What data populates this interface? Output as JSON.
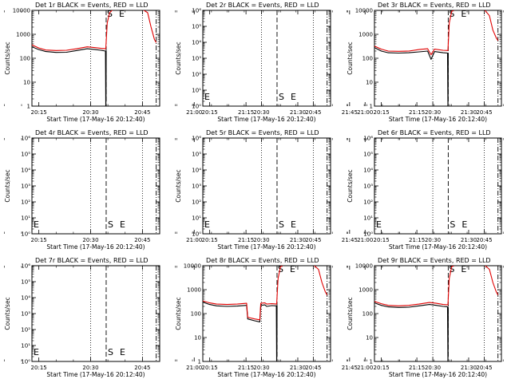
{
  "figure": {
    "x_tick_labels": [
      "20:15",
      "20:30",
      "20:45",
      "21:00",
      "21:15",
      "21:30",
      "21:45"
    ]
  },
  "chart_data": [
    {
      "type": "line",
      "detector": "1r",
      "title": "Det 1r BLACK = Events, RED = LLD",
      "xlabel": "Start Time (17-May-16 20:12:40)",
      "ylabel": "Counts/sec",
      "x_unit": "minutes after 20:00",
      "xlim": [
        13,
        50
      ],
      "y_scale": "log",
      "ylim": [
        1,
        10000
      ],
      "y_tick_labels": [
        "1",
        "10",
        "100",
        "1000",
        "10000"
      ],
      "empty": false,
      "start_time": 34.5,
      "end_time": 49,
      "markers": {
        "S": "S",
        "E": "E"
      },
      "series": [
        {
          "label": "Events",
          "color": "#000000",
          "points": [
            [
              13,
              300
            ],
            [
              15,
              230
            ],
            [
              17,
              190
            ],
            [
              20,
              175
            ],
            [
              23,
              178
            ],
            [
              26,
              210
            ],
            [
              29,
              250
            ],
            [
              31,
              235
            ],
            [
              33,
              215
            ],
            [
              34.3,
              200
            ],
            [
              34.4,
              1
            ],
            [
              34.45,
              2
            ],
            [
              34.5,
              200
            ]
          ]
        },
        {
          "label": "LLD",
          "color": "#e00000",
          "points": [
            [
              13,
              360
            ],
            [
              15,
              270
            ],
            [
              17,
              220
            ],
            [
              20,
              210
            ],
            [
              23,
              215
            ],
            [
              26,
              250
            ],
            [
              29,
              300
            ],
            [
              31,
              280
            ],
            [
              33,
              260
            ],
            [
              34.4,
              250
            ],
            [
              34.8,
              3000
            ],
            [
              35.5,
              8000
            ],
            [
              36.5,
              11000
            ],
            [
              45,
              11000
            ],
            [
              46.5,
              8000
            ],
            [
              47.5,
              2000
            ],
            [
              48.5,
              600
            ],
            [
              49,
              450
            ]
          ]
        }
      ]
    },
    {
      "type": "line",
      "detector": "2r",
      "title": "Det 2r BLACK = Events, RED = LLD",
      "xlabel": "Start Time (17-May-16 20:12:40)",
      "ylabel": "Counts/sec",
      "x_unit": "minutes after 20:00",
      "xlim": [
        13,
        50
      ],
      "y_scale": "log",
      "ylim": [
        1,
        1000000
      ],
      "y_tick_labels": [
        "10⁰",
        "10¹",
        "10²",
        "10³",
        "10⁴",
        "10⁵",
        "10⁶"
      ],
      "empty": true,
      "start_time": 34.5,
      "end_time": 49,
      "markers": {
        "S": "S",
        "E": "E"
      },
      "series": []
    },
    {
      "type": "line",
      "detector": "3r",
      "title": "Det 3r BLACK = Events, RED = LLD",
      "xlabel": "Start Time (17-May-16 20:12:40)",
      "ylabel": "Counts/sec",
      "x_unit": "minutes after 20:00",
      "xlim": [
        13,
        50
      ],
      "y_scale": "log",
      "ylim": [
        1,
        10000
      ],
      "y_tick_labels": [
        "1",
        "10",
        "100",
        "1000",
        "10000"
      ],
      "empty": false,
      "start_time": 34.5,
      "end_time": 49,
      "markers": {
        "S": "S",
        "E": "E"
      },
      "series": [
        {
          "label": "Events",
          "color": "#000000",
          "points": [
            [
              13,
              280
            ],
            [
              15,
              200
            ],
            [
              17,
              170
            ],
            [
              20,
              165
            ],
            [
              23,
              170
            ],
            [
              26,
              185
            ],
            [
              28.5,
              200
            ],
            [
              29.5,
              90
            ],
            [
              30.5,
              190
            ],
            [
              33,
              170
            ],
            [
              34.3,
              165
            ],
            [
              34.4,
              1
            ],
            [
              34.45,
              2
            ],
            [
              34.5,
              170
            ]
          ]
        },
        {
          "label": "LLD",
          "color": "#e00000",
          "points": [
            [
              13,
              320
            ],
            [
              15,
              240
            ],
            [
              17,
              200
            ],
            [
              20,
              195
            ],
            [
              23,
              200
            ],
            [
              26,
              230
            ],
            [
              28.5,
              250
            ],
            [
              29.5,
              140
            ],
            [
              30.5,
              240
            ],
            [
              33,
              215
            ],
            [
              34.4,
              210
            ],
            [
              34.8,
              3000
            ],
            [
              35.5,
              9000
            ],
            [
              36.5,
              11000
            ],
            [
              45,
              11000
            ],
            [
              46.5,
              6000
            ],
            [
              47.5,
              1500
            ],
            [
              48.5,
              700
            ],
            [
              49,
              550
            ]
          ]
        }
      ]
    },
    {
      "type": "line",
      "detector": "4r",
      "title": "Det 4r BLACK = Events, RED = LLD",
      "xlabel": "Start Time (17-May-16 20:12:40)",
      "ylabel": "Counts/sec",
      "x_unit": "minutes after 20:00",
      "xlim": [
        13,
        50
      ],
      "y_scale": "log",
      "ylim": [
        1,
        1000000
      ],
      "y_tick_labels": [
        "10⁰",
        "10¹",
        "10²",
        "10³",
        "10⁴",
        "10⁵",
        "10⁶"
      ],
      "empty": true,
      "start_time": 34.5,
      "end_time": 49,
      "markers": {
        "S": "S",
        "E": "E"
      },
      "series": []
    },
    {
      "type": "line",
      "detector": "5r",
      "title": "Det 5r BLACK = Events, RED = LLD",
      "xlabel": "Start Time (17-May-16 20:12:40)",
      "ylabel": "Counts/sec",
      "x_unit": "minutes after 20:00",
      "xlim": [
        13,
        50
      ],
      "y_scale": "log",
      "ylim": [
        1,
        1000000
      ],
      "y_tick_labels": [
        "10⁰",
        "10¹",
        "10²",
        "10³",
        "10⁴",
        "10⁵",
        "10⁶"
      ],
      "empty": true,
      "start_time": 34.5,
      "end_time": 49,
      "markers": {
        "S": "S",
        "E": "E"
      },
      "series": []
    },
    {
      "type": "line",
      "detector": "6r",
      "title": "Det 6r BLACK = Events, RED = LLD",
      "xlabel": "Start Time (17-May-16 20:12:40)",
      "ylabel": "Counts/sec",
      "x_unit": "minutes after 20:00",
      "xlim": [
        13,
        50
      ],
      "y_scale": "log",
      "ylim": [
        1,
        1000000
      ],
      "y_tick_labels": [
        "10⁰",
        "10¹",
        "10²",
        "10³",
        "10⁴",
        "10⁵",
        "10⁶"
      ],
      "empty": true,
      "start_time": 34.5,
      "end_time": 49,
      "markers": {
        "S": "S",
        "E": "E"
      },
      "series": []
    },
    {
      "type": "line",
      "detector": "7r",
      "title": "Det 7r BLACK = Events, RED = LLD",
      "xlabel": "Start Time (17-May-16 20:12:40)",
      "ylabel": "Counts/sec",
      "x_unit": "minutes after 20:00",
      "xlim": [
        13,
        50
      ],
      "y_scale": "log",
      "ylim": [
        1,
        1000000
      ],
      "y_tick_labels": [
        "10⁰",
        "10¹",
        "10²",
        "10³",
        "10⁴",
        "10⁵",
        "10⁶"
      ],
      "empty": true,
      "start_time": 34.5,
      "end_time": 49,
      "markers": {
        "S": "S",
        "E": "E"
      },
      "series": []
    },
    {
      "type": "line",
      "detector": "8r",
      "title": "Det 8r BLACK = Events, RED = LLD",
      "xlabel": "Start Time (17-May-16 20:12:40)",
      "ylabel": "Counts/sec",
      "x_unit": "minutes after 20:00",
      "xlim": [
        13,
        50
      ],
      "y_scale": "log",
      "ylim": [
        1,
        10000
      ],
      "y_tick_labels": [
        "1",
        "10",
        "100",
        "1000",
        "10000"
      ],
      "empty": false,
      "start_time": 34.5,
      "end_time": 49,
      "markers": {
        "S": "S",
        "E": "E"
      },
      "series": [
        {
          "label": "Events",
          "color": "#000000",
          "points": [
            [
              13,
              300
            ],
            [
              15,
              240
            ],
            [
              17,
              210
            ],
            [
              20,
              200
            ],
            [
              23,
              205
            ],
            [
              25.7,
              220
            ],
            [
              26,
              60
            ],
            [
              28,
              50
            ],
            [
              29.5,
              45
            ],
            [
              29.8,
              220
            ],
            [
              31,
              230
            ],
            [
              31.5,
              200
            ],
            [
              33,
              215
            ],
            [
              34.3,
              210
            ],
            [
              34.4,
              1
            ],
            [
              34.45,
              2
            ],
            [
              34.5,
              210
            ]
          ]
        },
        {
          "label": "LLD",
          "color": "#e00000",
          "points": [
            [
              13,
              340
            ],
            [
              15,
              280
            ],
            [
              17,
              250
            ],
            [
              20,
              240
            ],
            [
              23,
              250
            ],
            [
              25.7,
              270
            ],
            [
              26,
              70
            ],
            [
              28,
              60
            ],
            [
              29.5,
              55
            ],
            [
              29.8,
              270
            ],
            [
              31,
              280
            ],
            [
              31.5,
              250
            ],
            [
              33,
              260
            ],
            [
              34.4,
              250
            ],
            [
              34.8,
              3000
            ],
            [
              35.5,
              9000
            ],
            [
              36.5,
              11000
            ],
            [
              45,
              11000
            ],
            [
              46.5,
              7000
            ],
            [
              47.5,
              2000
            ],
            [
              48.5,
              800
            ],
            [
              49,
              600
            ]
          ]
        }
      ]
    },
    {
      "type": "line",
      "detector": "9r",
      "title": "Det 9r BLACK = Events, RED = LLD",
      "xlabel": "Start Time (17-May-16 20:12:40)",
      "ylabel": "Counts/sec",
      "x_unit": "minutes after 20:00",
      "xlim": [
        13,
        50
      ],
      "y_scale": "log",
      "ylim": [
        1,
        10000
      ],
      "y_tick_labels": [
        "1",
        "10",
        "100",
        "1000",
        "10000"
      ],
      "empty": false,
      "start_time": 34.5,
      "end_time": 49,
      "markers": {
        "S": "S",
        "E": "E"
      },
      "series": [
        {
          "label": "Events",
          "color": "#000000",
          "points": [
            [
              13,
              280
            ],
            [
              15,
              220
            ],
            [
              17,
              190
            ],
            [
              20,
              180
            ],
            [
              23,
              185
            ],
            [
              26,
              210
            ],
            [
              29,
              240
            ],
            [
              31,
              220
            ],
            [
              33,
              200
            ],
            [
              34.3,
              190
            ],
            [
              34.4,
              1
            ],
            [
              34.45,
              2
            ],
            [
              34.5,
              190
            ]
          ]
        },
        {
          "label": "LLD",
          "color": "#e00000",
          "points": [
            [
              13,
              320
            ],
            [
              15,
              260
            ],
            [
              17,
              220
            ],
            [
              20,
              210
            ],
            [
              23,
              220
            ],
            [
              26,
              250
            ],
            [
              29,
              290
            ],
            [
              31,
              270
            ],
            [
              33,
              240
            ],
            [
              34.4,
              230
            ],
            [
              34.8,
              3000
            ],
            [
              35.5,
              9000
            ],
            [
              36.5,
              11000
            ],
            [
              45,
              11000
            ],
            [
              46.5,
              7000
            ],
            [
              47.5,
              2000
            ],
            [
              48.5,
              800
            ],
            [
              49,
              600
            ]
          ]
        }
      ]
    }
  ]
}
